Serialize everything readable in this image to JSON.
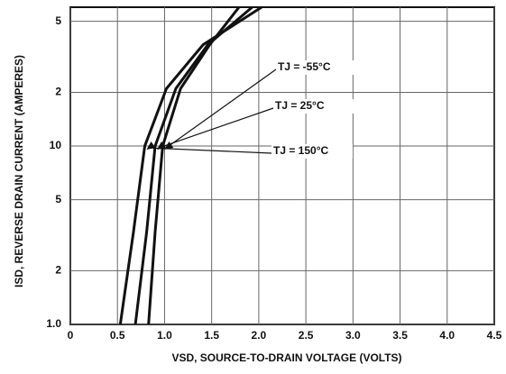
{
  "chart_data": {
    "type": "line",
    "x_label": "VSD, SOURCE-TO-DRAIN VOLTAGE (VOLTS)",
    "y_label": "ISD, REVERSE DRAIN CURRENT (AMPERES)",
    "log_y": true,
    "grid": true,
    "xlim": [
      0,
      4.5
    ],
    "ylim": [
      1,
      60
    ],
    "xticks": [
      0,
      0.5,
      {
        "value": 1,
        "label": "1.0"
      },
      1.5,
      {
        "value": 2,
        "label": "2.0"
      },
      2.5,
      {
        "value": 3,
        "label": "3.0"
      },
      3.5,
      {
        "value": 4,
        "label": "4.0"
      },
      4.5
    ],
    "yticks": [
      {
        "value": 1,
        "label": "1.0"
      },
      2,
      5,
      10,
      {
        "value": 20,
        "label": "2"
      },
      {
        "value": 50,
        "label": "5"
      }
    ],
    "series": [
      {
        "name": "TJ = -55°C",
        "color": "#111111",
        "x": [
          0.83,
          0.9,
          0.98,
          1.17,
          1.48,
          1.79
        ],
        "values": [
          1,
          3.3,
          10,
          21,
          37,
          60
        ]
      },
      {
        "name": "TJ = 25°C",
        "color": "#111111",
        "x": [
          0.69,
          0.81,
          0.9,
          1.12,
          1.46,
          1.93
        ],
        "values": [
          1,
          3.3,
          10,
          21,
          37,
          60
        ]
      },
      {
        "name": "TJ = 150°C",
        "color": "#111111",
        "x": [
          0.53,
          0.67,
          0.79,
          1.02,
          1.41,
          2.03
        ],
        "values": [
          1,
          3.3,
          10,
          21,
          37,
          60
        ]
      }
    ]
  }
}
